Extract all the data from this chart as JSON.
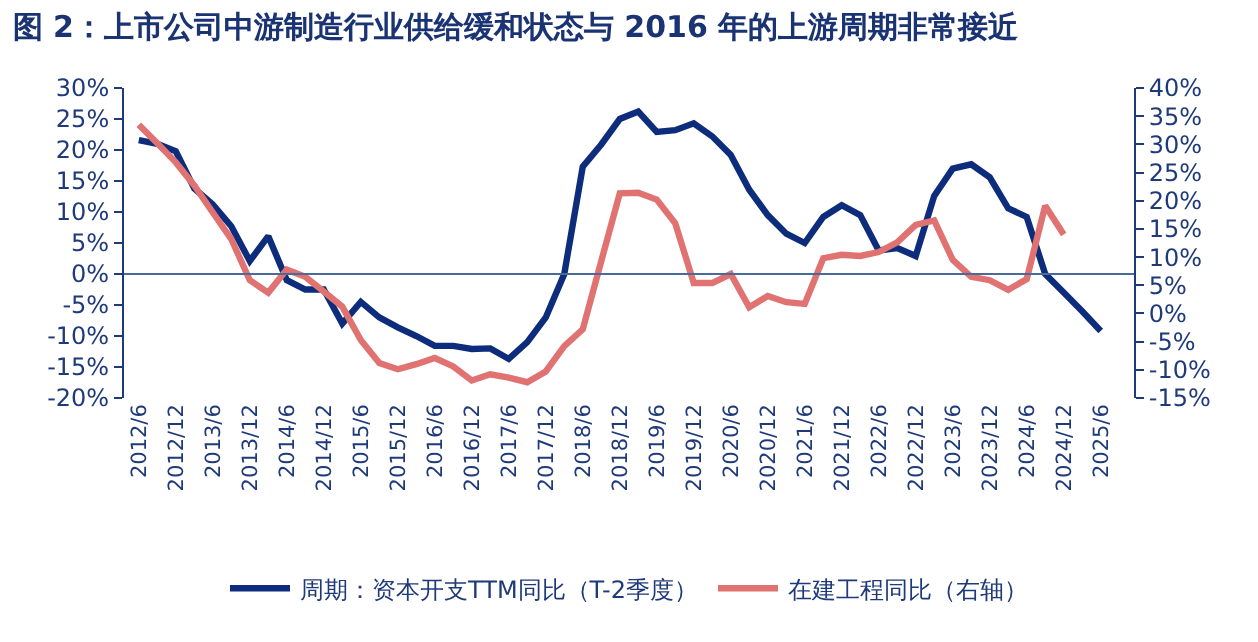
{
  "chart_data": {
    "type": "line",
    "title": "图 2：上市公司中游制造行业供给缓和状态与 2016 年的上游周期非常接近",
    "categories": [
      "2012/6",
      null,
      "2012/12",
      null,
      "2013/6",
      null,
      "2013/12",
      null,
      "2014/6",
      null,
      "2014/12",
      null,
      "2015/6",
      null,
      "2015/12",
      null,
      "2016/6",
      null,
      "2016/12",
      null,
      "2017/6",
      null,
      "2017/12",
      null,
      "2018/6",
      null,
      "2018/12",
      null,
      "2019/6",
      null,
      "2019/12",
      null,
      "2020/6",
      null,
      "2020/12",
      null,
      "2021/6",
      null,
      "2021/12",
      null,
      "2022/6",
      null,
      "2022/12",
      null,
      "2023/6",
      null,
      "2023/12",
      null,
      "2024/6",
      null,
      "2024/12",
      null,
      "2025/6"
    ],
    "series": [
      {
        "name": "周期：资本开支TTM同比（T-2季度）",
        "color": "#0d2c7c",
        "values": [
          21.6,
          21,
          19.8,
          13.8,
          11.2,
          7.7,
          2.1,
          6.1,
          -1,
          -2.5,
          -2.5,
          -8,
          -4.5,
          -7,
          -8.6,
          -10,
          -11.6,
          -11.6,
          -12.1,
          -12,
          -13.7,
          -11,
          -7,
          0,
          17.3,
          20.9,
          25,
          26.2,
          22.9,
          23.2,
          24.3,
          22.2,
          19.2,
          13.6,
          9.5,
          6.5,
          5,
          9.2,
          11.1,
          9.5,
          3.8,
          4.2,
          2.9,
          12.6,
          17,
          17.7,
          15.6,
          10.6,
          9.2,
          0,
          -3,
          -6,
          -9.2
        ]
      },
      {
        "name": "在建工程同比（右轴）",
        "color": "#e07272",
        "axis": "y2",
        "values": [
          33.5,
          30.2,
          26.8,
          22.7,
          17.9,
          13.2,
          5.9,
          3.7,
          7.8,
          6.5,
          3.9,
          1.2,
          -4.7,
          -8.8,
          -9.9,
          -9,
          -7.9,
          -9.4,
          -11.9,
          -10.8,
          -11.4,
          -12.2,
          -10.3,
          -5.8,
          -2.8,
          9.3,
          21.3,
          21.4,
          20.2,
          16,
          5.4,
          5.4,
          7,
          1.1,
          3.1,
          2,
          1.7,
          9.8,
          10.4,
          10.2,
          10.9,
          12.6,
          15.7,
          16.5,
          9.5,
          6.5,
          5.9,
          4.2,
          6.1,
          19.1,
          14,
          null,
          null
        ]
      }
    ],
    "ylim": [
      -20,
      30
    ],
    "yticks": [
      {
        "value": -20,
        "label": "-20%"
      },
      {
        "value": -15,
        "label": "-15%"
      },
      {
        "value": -10,
        "label": "-10%"
      },
      {
        "value": -5,
        "label": "-5%"
      },
      {
        "value": 0,
        "label": "0%"
      },
      {
        "value": 5,
        "label": "5%"
      },
      {
        "value": 10,
        "label": "10%"
      },
      {
        "value": 15,
        "label": "15%"
      },
      {
        "value": 20,
        "label": "20%"
      },
      {
        "value": 25,
        "label": "25%"
      },
      {
        "value": 30,
        "label": "30%"
      }
    ],
    "y2lim": [
      -15,
      40
    ],
    "y2ticks": [
      {
        "value": -15,
        "label": "-15%"
      },
      {
        "value": -10,
        "label": "-10%"
      },
      {
        "value": -5,
        "label": "-5%"
      },
      {
        "value": 0,
        "label": "0%"
      },
      {
        "value": 5,
        "label": "5%"
      },
      {
        "value": 10,
        "label": "10%"
      },
      {
        "value": 15,
        "label": "15%"
      },
      {
        "value": 20,
        "label": "20%"
      },
      {
        "value": 25,
        "label": "25%"
      },
      {
        "value": 30,
        "label": "30%"
      },
      {
        "value": 35,
        "label": "35%"
      },
      {
        "value": 40,
        "label": "40%"
      }
    ],
    "ref_lines": [
      {
        "axis": "y",
        "value": 0,
        "color": "#4a6a9a"
      }
    ],
    "legend": "bottom",
    "marker": "none",
    "line_style": "solid"
  }
}
